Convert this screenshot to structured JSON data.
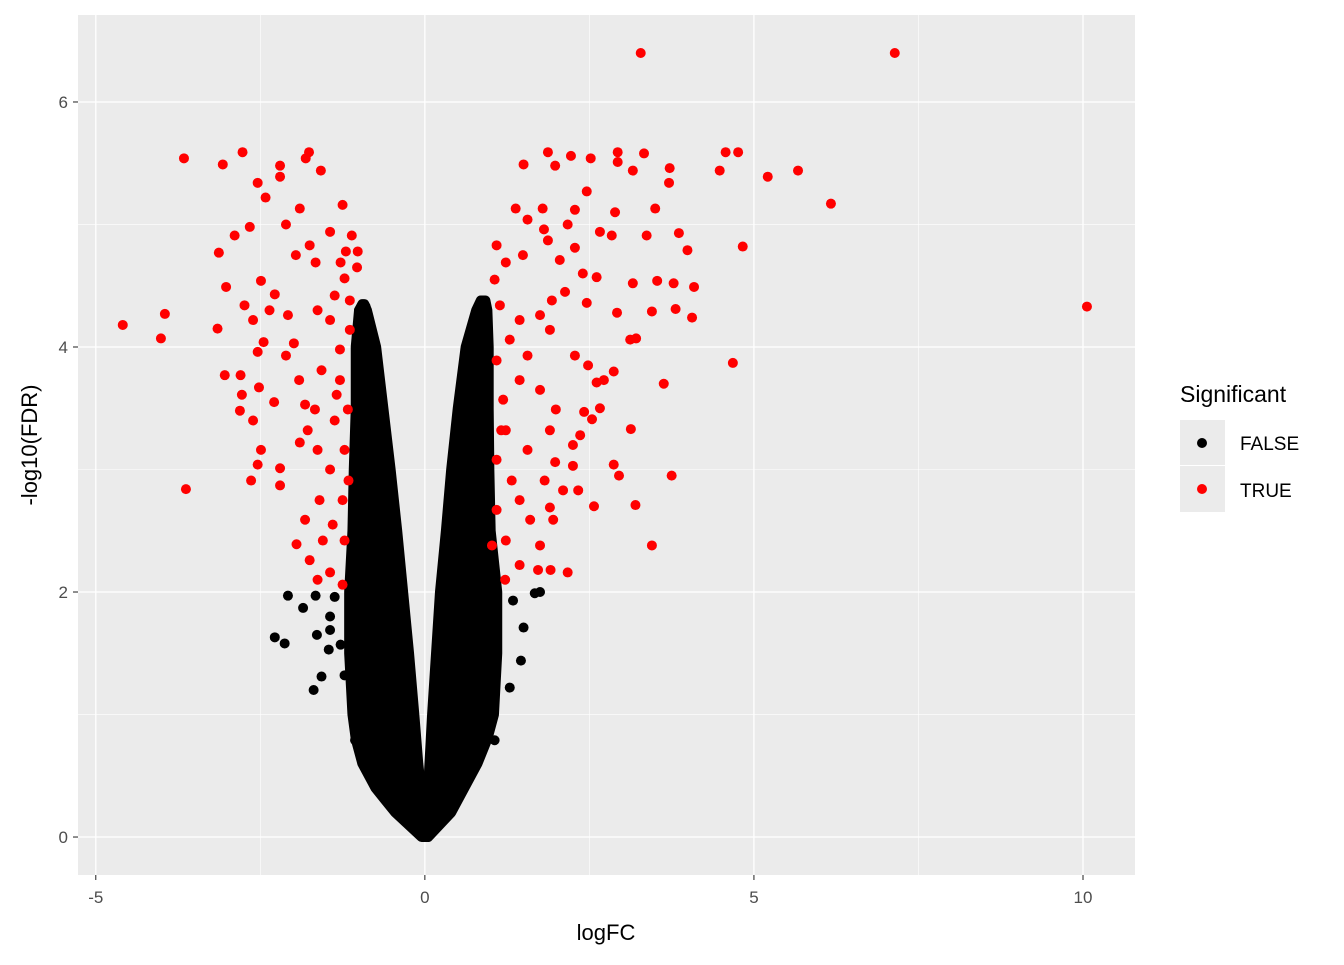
{
  "chart_data": {
    "type": "scatter",
    "title": "",
    "xlabel": "logFC",
    "ylabel": "-log10(FDR)",
    "xlim": [
      -5.27,
      10.79
    ],
    "ylim": [
      -0.31,
      6.71
    ],
    "x_ticks": [
      -5,
      0,
      5,
      10
    ],
    "x_tick_labels": [
      "-5",
      "0",
      "5",
      "10"
    ],
    "y_ticks": [
      0,
      2,
      4,
      6
    ],
    "y_tick_labels": [
      "0",
      "2",
      "4",
      "6"
    ],
    "grid": true,
    "legend": {
      "title": "Significant",
      "position": "right",
      "entries": [
        {
          "label": "FALSE",
          "color": "#000000"
        },
        {
          "label": "TRUE",
          "color": "#FF0000"
        }
      ]
    },
    "panel_background": "#EBEBEB",
    "series": [
      {
        "name": "FALSE",
        "color": "#000000",
        "dense_envelope": {
          "left": [
            [
              0,
              -0.05,
              0.0
            ],
            [
              0.2,
              -0.45,
              -0.02
            ],
            [
              0.4,
              -0.75,
              -0.06
            ],
            [
              0.6,
              -0.95,
              -0.1
            ],
            [
              0.8,
              -1.05,
              -0.13
            ],
            [
              1.0,
              -1.1,
              -0.16
            ],
            [
              1.5,
              -1.15,
              -0.24
            ],
            [
              2.0,
              -1.15,
              -0.33
            ],
            [
              2.5,
              -1.1,
              -0.42
            ],
            [
              3.0,
              -1.08,
              -0.52
            ],
            [
              3.5,
              -1.05,
              -0.63
            ],
            [
              4.0,
              -1.05,
              -0.74
            ],
            [
              4.3,
              -1.0,
              -0.88
            ],
            [
              4.35,
              -0.95,
              -0.92
            ]
          ],
          "right": [
            [
              0,
              0.0,
              0.05
            ],
            [
              0.2,
              0.01,
              0.4
            ],
            [
              0.4,
              0.05,
              0.6
            ],
            [
              0.6,
              0.07,
              0.8
            ],
            [
              0.8,
              0.09,
              0.95
            ],
            [
              1.0,
              0.11,
              1.05
            ],
            [
              1.5,
              0.17,
              1.1
            ],
            [
              2.0,
              0.23,
              1.1
            ],
            [
              2.5,
              0.32,
              1.0
            ],
            [
              3.0,
              0.4,
              0.98
            ],
            [
              3.5,
              0.5,
              0.97
            ],
            [
              4.0,
              0.62,
              0.97
            ],
            [
              4.3,
              0.78,
              0.95
            ],
            [
              4.38,
              0.85,
              0.92
            ]
          ]
        },
        "points": [
          [
            -2.08,
            1.97
          ],
          [
            -2.28,
            1.63
          ],
          [
            -2.13,
            1.58
          ],
          [
            -1.69,
            1.2
          ],
          [
            -1.57,
            1.31
          ],
          [
            -1.85,
            1.87
          ],
          [
            -1.66,
            1.97
          ],
          [
            -1.64,
            1.65
          ],
          [
            -1.44,
            1.69
          ],
          [
            -1.46,
            1.53
          ],
          [
            -1.37,
            1.96
          ],
          [
            -1.44,
            1.8
          ],
          [
            -1.28,
            1.57
          ],
          [
            -1.22,
            1.32
          ],
          [
            -1.09,
            1.0
          ],
          [
            -1.06,
            0.79
          ],
          [
            1.67,
            1.99
          ],
          [
            1.75,
            2.0
          ],
          [
            1.5,
            1.71
          ],
          [
            1.46,
            1.44
          ],
          [
            1.29,
            1.22
          ],
          [
            1.06,
            0.79
          ],
          [
            1.34,
            1.93
          ],
          [
            -1.0,
            4.3
          ],
          [
            -0.9,
            4.33
          ],
          [
            0.92,
            4.36
          ],
          [
            0.85,
            4.3
          ]
        ]
      },
      {
        "name": "TRUE",
        "color": "#FF0000",
        "points": [
          [
            3.28,
            6.4
          ],
          [
            7.14,
            6.4
          ],
          [
            10.06,
            4.33
          ],
          [
            -4.59,
            4.18
          ],
          [
            -3.95,
            4.27
          ],
          [
            -4.01,
            4.07
          ],
          [
            -3.63,
            2.84
          ],
          [
            -3.66,
            5.54
          ],
          [
            -3.07,
            5.49
          ],
          [
            -2.77,
            5.59
          ],
          [
            -1.76,
            5.59
          ],
          [
            -1.81,
            5.54
          ],
          [
            -2.2,
            5.48
          ],
          [
            -2.2,
            5.39
          ],
          [
            -2.54,
            5.34
          ],
          [
            -1.58,
            5.44
          ],
          [
            -2.42,
            5.22
          ],
          [
            -1.25,
            5.16
          ],
          [
            -1.9,
            5.13
          ],
          [
            -2.11,
            5.0
          ],
          [
            -2.66,
            4.98
          ],
          [
            -2.89,
            4.91
          ],
          [
            -3.13,
            4.77
          ],
          [
            -3.02,
            4.49
          ],
          [
            -3.15,
            4.15
          ],
          [
            -3.04,
            3.77
          ],
          [
            -2.8,
            3.77
          ],
          [
            -2.78,
            3.61
          ],
          [
            -2.81,
            3.48
          ],
          [
            -2.61,
            3.4
          ],
          [
            -2.64,
            2.91
          ],
          [
            -2.54,
            3.04
          ],
          [
            -2.49,
            3.16
          ],
          [
            -2.2,
            3.01
          ],
          [
            -2.2,
            2.87
          ],
          [
            -1.9,
            3.22
          ],
          [
            -2.29,
            3.55
          ],
          [
            -2.52,
            3.67
          ],
          [
            -2.54,
            3.96
          ],
          [
            -2.45,
            4.04
          ],
          [
            -2.74,
            4.34
          ],
          [
            -2.61,
            4.22
          ],
          [
            -2.49,
            4.54
          ],
          [
            -2.28,
            4.43
          ],
          [
            -2.36,
            4.3
          ],
          [
            -2.08,
            4.26
          ],
          [
            -1.99,
            4.03
          ],
          [
            -2.11,
            3.93
          ],
          [
            -1.91,
            3.73
          ],
          [
            -1.82,
            3.53
          ],
          [
            -1.78,
            3.32
          ],
          [
            -1.96,
            4.75
          ],
          [
            -1.75,
            4.83
          ],
          [
            -1.66,
            4.69
          ],
          [
            -1.44,
            4.94
          ],
          [
            -1.28,
            4.69
          ],
          [
            -1.22,
            4.56
          ],
          [
            -1.37,
            4.42
          ],
          [
            -1.63,
            4.3
          ],
          [
            -1.44,
            4.22
          ],
          [
            -1.2,
            4.78
          ],
          [
            -1.02,
            4.78
          ],
          [
            -1.03,
            4.65
          ],
          [
            -1.11,
            4.91
          ],
          [
            -1.95,
            2.39
          ],
          [
            -1.82,
            2.59
          ],
          [
            -1.75,
            2.26
          ],
          [
            -1.63,
            2.1
          ],
          [
            -1.44,
            2.16
          ],
          [
            -1.25,
            2.06
          ],
          [
            -1.6,
            2.75
          ],
          [
            -1.44,
            3.0
          ],
          [
            -1.63,
            3.16
          ],
          [
            -1.37,
            3.4
          ],
          [
            -1.29,
            3.73
          ],
          [
            -1.57,
            3.81
          ],
          [
            -1.29,
            3.98
          ],
          [
            -1.14,
            4.14
          ],
          [
            -1.17,
            3.49
          ],
          [
            -1.22,
            3.16
          ],
          [
            -1.25,
            2.75
          ],
          [
            -1.22,
            2.42
          ],
          [
            -1.4,
            2.55
          ],
          [
            -1.67,
            3.49
          ],
          [
            -1.34,
            3.61
          ],
          [
            -1.14,
            4.38
          ],
          [
            -1.16,
            2.91
          ],
          [
            -1.55,
            2.42
          ],
          [
            1.5,
            5.49
          ],
          [
            1.87,
            5.59
          ],
          [
            1.98,
            5.48
          ],
          [
            2.22,
            5.56
          ],
          [
            2.52,
            5.54
          ],
          [
            2.93,
            5.59
          ],
          [
            3.33,
            5.58
          ],
          [
            3.16,
            5.44
          ],
          [
            2.93,
            5.51
          ],
          [
            4.57,
            5.59
          ],
          [
            4.76,
            5.59
          ],
          [
            4.48,
            5.44
          ],
          [
            5.67,
            5.44
          ],
          [
            5.21,
            5.39
          ],
          [
            6.17,
            5.17
          ],
          [
            3.72,
            5.46
          ],
          [
            3.71,
            5.34
          ],
          [
            3.5,
            5.13
          ],
          [
            2.46,
            5.27
          ],
          [
            2.28,
            5.12
          ],
          [
            1.79,
            5.13
          ],
          [
            2.89,
            5.1
          ],
          [
            1.38,
            5.13
          ],
          [
            1.56,
            5.04
          ],
          [
            1.81,
            4.96
          ],
          [
            2.17,
            5.0
          ],
          [
            2.66,
            4.94
          ],
          [
            2.84,
            4.91
          ],
          [
            3.37,
            4.91
          ],
          [
            3.86,
            4.93
          ],
          [
            3.99,
            4.79
          ],
          [
            4.83,
            4.82
          ],
          [
            1.09,
            4.83
          ],
          [
            1.23,
            4.69
          ],
          [
            1.49,
            4.75
          ],
          [
            1.87,
            4.87
          ],
          [
            2.05,
            4.71
          ],
          [
            2.28,
            4.81
          ],
          [
            2.4,
            4.6
          ],
          [
            2.61,
            4.57
          ],
          [
            3.16,
            4.52
          ],
          [
            3.53,
            4.54
          ],
          [
            3.78,
            4.52
          ],
          [
            4.09,
            4.49
          ],
          [
            4.06,
            4.24
          ],
          [
            3.81,
            4.31
          ],
          [
            3.45,
            4.29
          ],
          [
            2.92,
            4.28
          ],
          [
            2.46,
            4.36
          ],
          [
            2.13,
            4.45
          ],
          [
            1.93,
            4.38
          ],
          [
            1.75,
            4.26
          ],
          [
            1.44,
            4.22
          ],
          [
            1.14,
            4.34
          ],
          [
            1.06,
            4.55
          ],
          [
            1.29,
            4.06
          ],
          [
            1.56,
            3.93
          ],
          [
            1.9,
            4.14
          ],
          [
            2.28,
            3.93
          ],
          [
            2.48,
            3.85
          ],
          [
            2.72,
            3.73
          ],
          [
            2.87,
            3.8
          ],
          [
            3.12,
            4.06
          ],
          [
            3.21,
            4.07
          ],
          [
            4.68,
            3.87
          ],
          [
            3.63,
            3.7
          ],
          [
            2.61,
            3.71
          ],
          [
            2.66,
            3.5
          ],
          [
            2.42,
            3.47
          ],
          [
            1.99,
            3.49
          ],
          [
            1.75,
            3.65
          ],
          [
            1.44,
            3.73
          ],
          [
            1.19,
            3.57
          ],
          [
            1.23,
            3.32
          ],
          [
            1.56,
            3.16
          ],
          [
            1.9,
            3.32
          ],
          [
            2.36,
            3.28
          ],
          [
            2.25,
            3.2
          ],
          [
            3.13,
            3.33
          ],
          [
            2.54,
            3.41
          ],
          [
            2.87,
            3.04
          ],
          [
            2.95,
            2.95
          ],
          [
            3.75,
            2.95
          ],
          [
            3.2,
            2.71
          ],
          [
            3.45,
            2.38
          ],
          [
            2.57,
            2.7
          ],
          [
            2.33,
            2.83
          ],
          [
            2.1,
            2.83
          ],
          [
            2.25,
            3.03
          ],
          [
            1.98,
            3.06
          ],
          [
            1.82,
            2.91
          ],
          [
            1.9,
            2.69
          ],
          [
            1.95,
            2.59
          ],
          [
            1.6,
            2.59
          ],
          [
            1.44,
            2.75
          ],
          [
            1.23,
            2.42
          ],
          [
            1.75,
            2.38
          ],
          [
            1.72,
            2.18
          ],
          [
            1.91,
            2.18
          ],
          [
            2.17,
            2.16
          ],
          [
            1.44,
            2.22
          ],
          [
            1.22,
            2.1
          ],
          [
            1.09,
            2.67
          ],
          [
            1.09,
            3.08
          ],
          [
            1.09,
            3.89
          ],
          [
            1.16,
            3.32
          ],
          [
            1.02,
            2.38
          ],
          [
            1.32,
            2.91
          ]
        ]
      }
    ]
  }
}
